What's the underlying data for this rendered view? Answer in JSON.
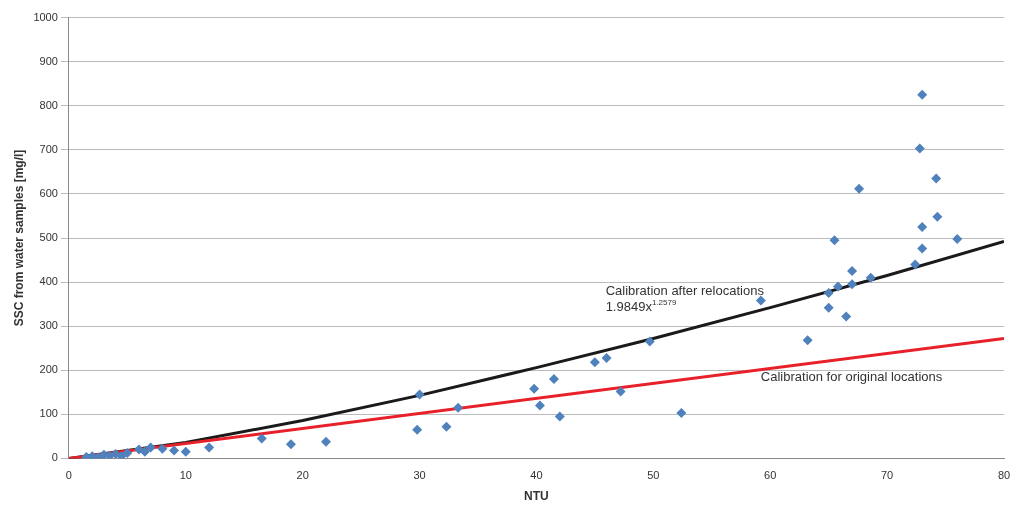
{
  "chart_data": {
    "type": "scatter",
    "xlabel": "NTU",
    "ylabel": "SSC from water samples [mg/l]",
    "xlim": [
      0,
      80
    ],
    "ylim": [
      0,
      1000
    ],
    "xticks": [
      0,
      10,
      20,
      30,
      40,
      50,
      60,
      70,
      80
    ],
    "yticks": [
      0,
      100,
      200,
      300,
      400,
      500,
      600,
      700,
      800,
      900,
      1000
    ],
    "grid": "y",
    "legend": false,
    "series": [
      {
        "type": "line",
        "marker": "none",
        "color": "#e8202a",
        "x": [
          0,
          80
        ],
        "values": [
          0,
          272
        ]
      },
      {
        "type": "line",
        "marker": "none",
        "color": "#1a1a1a",
        "x": [
          0,
          10,
          20,
          30,
          40,
          50,
          60,
          70,
          80
        ],
        "values": [
          0,
          36,
          86,
          143,
          206,
          272,
          342,
          415,
          492
        ]
      },
      {
        "marker": "diamond",
        "color": "#4f81bd",
        "x": [
          1.5,
          2,
          2.5,
          3,
          3.5,
          4,
          4.5,
          5,
          6,
          6.5,
          7,
          8,
          9,
          10,
          12,
          16.5,
          19,
          22,
          29.8,
          30,
          32.3,
          33.3,
          39.8,
          40.3,
          41.5,
          42,
          45,
          46,
          47.2,
          49.7,
          52.4,
          59.2,
          63.2,
          65,
          65,
          65.5,
          65.8,
          66.5,
          67,
          67,
          67.6,
          68.6,
          72.4,
          72.8,
          73,
          73,
          73,
          74.2,
          74.3,
          76
        ],
        "values": [
          3,
          5,
          2,
          8,
          6,
          10,
          5,
          12,
          20,
          15,
          25,
          22,
          18,
          15,
          25,
          45,
          32,
          38,
          65,
          145,
          72,
          115,
          158,
          120,
          180,
          95,
          218,
          228,
          152,
          265,
          103,
          358,
          268,
          342,
          375,
          495,
          390,
          322,
          425,
          395,
          612,
          410,
          440,
          703,
          525,
          476,
          825,
          635,
          548,
          498
        ]
      }
    ],
    "annotations": [
      "Calibration after relocations",
      "1.9849x$^{1.2579}$",
      "Calibration for original locations"
    ]
  }
}
